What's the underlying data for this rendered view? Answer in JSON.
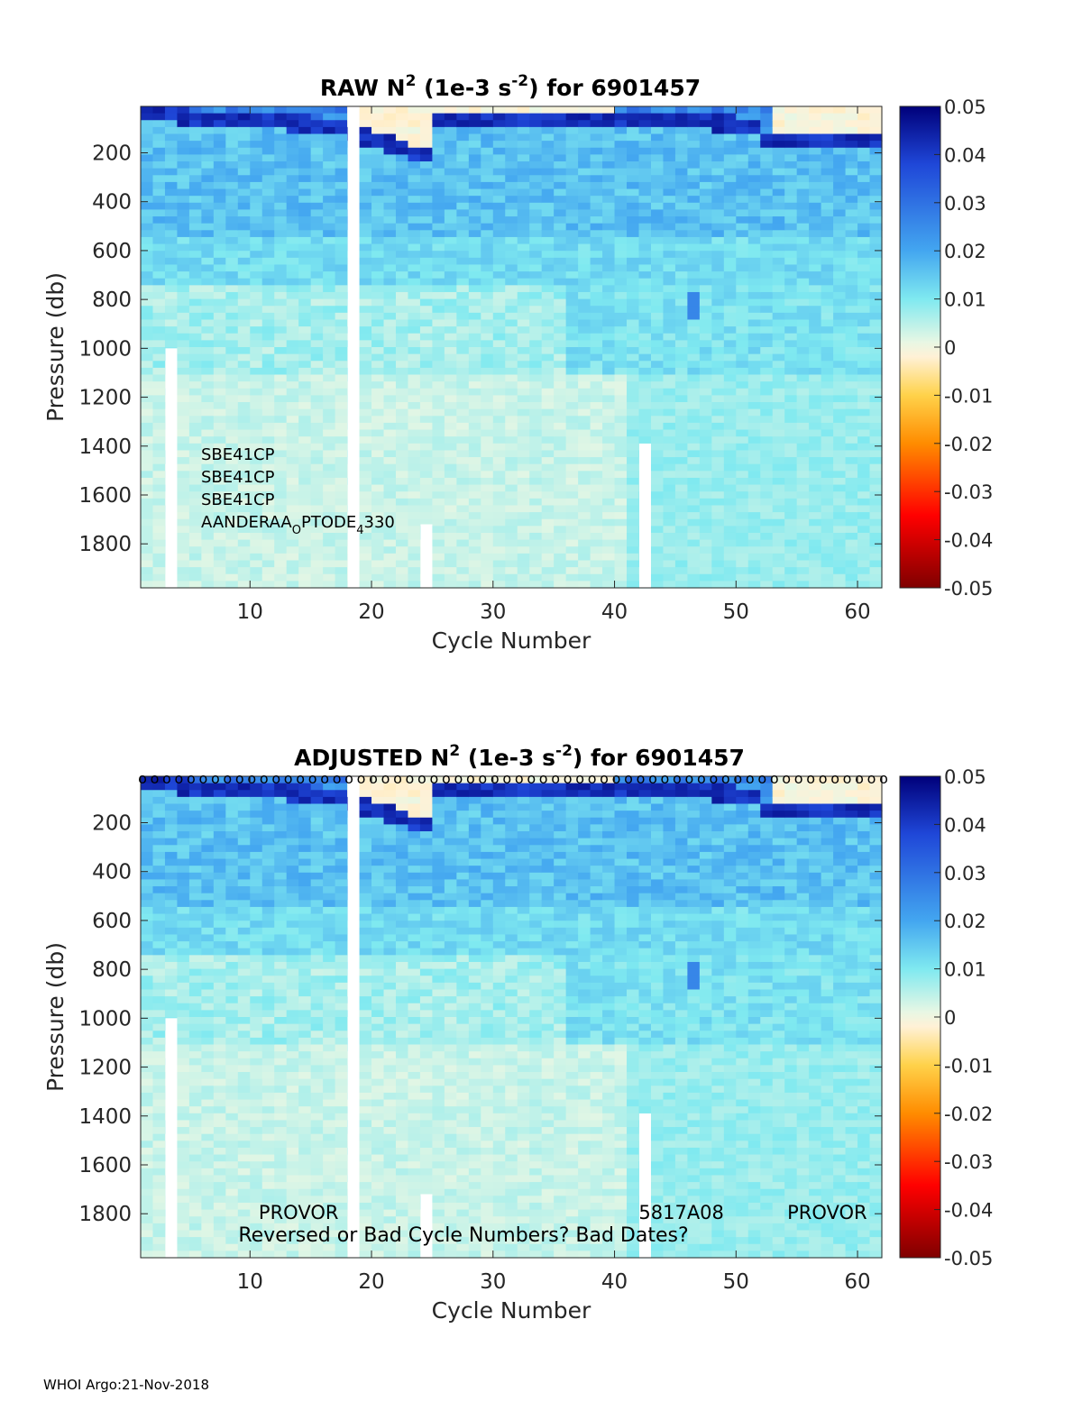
{
  "footer": "WHOI Argo:21-Nov-2018",
  "chart_data": [
    {
      "type": "heatmap",
      "title": {
        "prefix": "RAW N",
        "sup1": "2",
        "mid": " (1e-3 s",
        "sup2": "-2",
        "suffix": ") for 6901457"
      },
      "xlabel": "Cycle Number",
      "ylabel": "Pressure (db)",
      "xlim": [
        1,
        62
      ],
      "ylim": [
        1980,
        10
      ],
      "xticks": [
        10,
        20,
        30,
        40,
        50,
        60
      ],
      "yticks": [
        200,
        400,
        600,
        800,
        1000,
        1200,
        1400,
        1600,
        1800
      ],
      "colorbar": {
        "min": -0.05,
        "max": 0.05,
        "ticks": [
          "0.05",
          "0.04",
          "0.03",
          "0.02",
          "0.01",
          "0",
          "-0.01",
          "-0.02",
          "-0.03",
          "-0.04",
          "-0.05"
        ]
      },
      "color_scale": [
        "#7f0000",
        "#ff0000",
        "#ff8c00",
        "#ffd24a",
        "#fff1d6",
        "#e8f7e4",
        "#7fe9f0",
        "#43a6f0",
        "#1f47d8",
        "#00007a"
      ],
      "missing_cycles": [
        {
          "cycle": 3,
          "from": 1000
        },
        {
          "cycle": 18,
          "from": 10
        },
        {
          "cycle": 24,
          "from": 1720
        },
        {
          "cycle": 42,
          "from": 1390
        }
      ],
      "annotations": [
        "SBE41CP",
        "SBE41CP",
        "SBE41CP"
      ],
      "sensor": {
        "a": "AANDERAA",
        "sub1": "O",
        "b": "PTODE",
        "sub2": "4",
        "c": "330"
      },
      "qc_markers": false
    },
    {
      "type": "heatmap",
      "title": {
        "prefix": "ADJUSTED N",
        "sup1": "2",
        "mid": " (1e-3 s",
        "sup2": "-2",
        "suffix": ") for 6901457"
      },
      "xlabel": "Cycle Number",
      "ylabel": "Pressure (db)",
      "xlim": [
        1,
        62
      ],
      "ylim": [
        1980,
        10
      ],
      "xticks": [
        10,
        20,
        30,
        40,
        50,
        60
      ],
      "yticks": [
        200,
        400,
        600,
        800,
        1000,
        1200,
        1400,
        1600,
        1800
      ],
      "colorbar": {
        "min": -0.05,
        "max": 0.05,
        "ticks": [
          "0.05",
          "0.04",
          "0.03",
          "0.02",
          "0.01",
          "0",
          "-0.01",
          "-0.02",
          "-0.03",
          "-0.04",
          "-0.05"
        ]
      },
      "color_scale": [
        "#7f0000",
        "#ff0000",
        "#ff8c00",
        "#ffd24a",
        "#fff1d6",
        "#e8f7e4",
        "#7fe9f0",
        "#43a6f0",
        "#1f47d8",
        "#00007a"
      ],
      "missing_cycles": [
        {
          "cycle": 3,
          "from": 1000
        },
        {
          "cycle": 18,
          "from": 10
        },
        {
          "cycle": 24,
          "from": 1720
        },
        {
          "cycle": 42,
          "from": 1390
        }
      ],
      "labels": [
        {
          "text": "PROVOR",
          "cycle": 14,
          "pressure": 1800
        },
        {
          "text": "5817A08",
          "cycle": 45.5,
          "pressure": 1800
        },
        {
          "text": "PROVOR",
          "cycle": 57.5,
          "pressure": 1800
        }
      ],
      "warning": "Reversed or Bad Cycle Numbers? Bad Dates?",
      "qc_markers": true,
      "qc_marker_symbol": "o"
    }
  ]
}
